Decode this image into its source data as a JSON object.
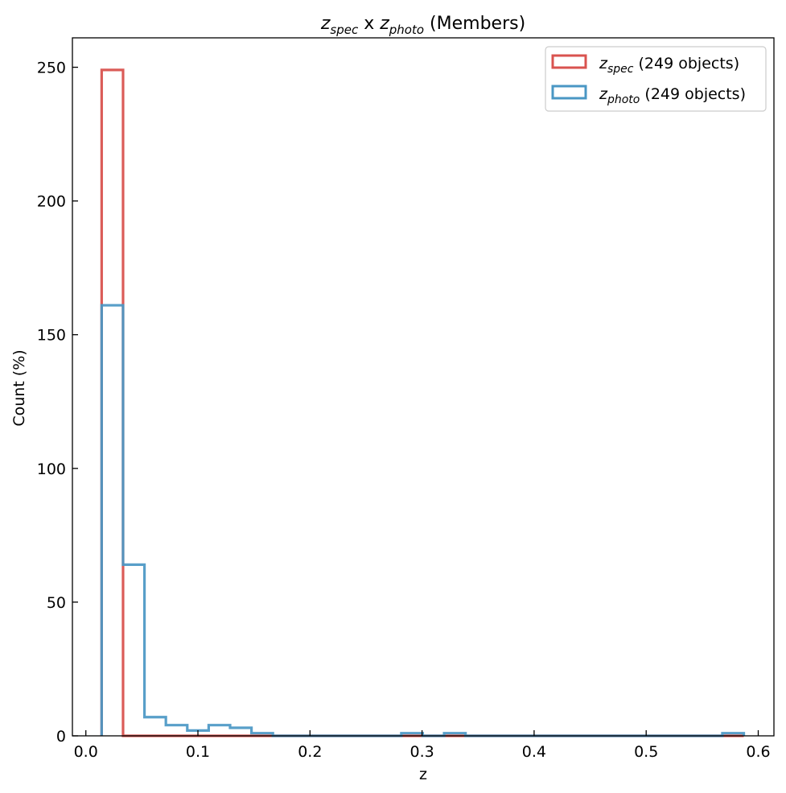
{
  "chart_data": {
    "type": "histogram",
    "title": {
      "spec_symbol": "z",
      "spec_sub": "spec",
      "joiner": " x ",
      "photo_symbol": "z",
      "photo_sub": "photo",
      "suffix": " (Members)"
    },
    "xlabel": "z",
    "ylabel": "Count (%)",
    "xlim": [
      -0.012,
      0.614
    ],
    "ylim": [
      0,
      261
    ],
    "xticks": [
      0.0,
      0.1,
      0.2,
      0.3,
      0.4,
      0.5,
      0.6
    ],
    "xtick_labels": [
      "0.0",
      "0.1",
      "0.2",
      "0.3",
      "0.4",
      "0.5",
      "0.6"
    ],
    "yticks": [
      0,
      50,
      100,
      150,
      200,
      250
    ],
    "ytick_labels": [
      "0",
      "50",
      "100",
      "150",
      "200",
      "250"
    ],
    "tick_direction": "in",
    "grid": false,
    "legend_position": "top-right",
    "series": [
      {
        "name": "z_spec (249 objects)",
        "legend": {
          "symbol": "z",
          "sub": "spec",
          "rest": " (249 objects)"
        },
        "color": "#d9534f",
        "bin_edges": [
          0.0141,
          0.0332,
          0.0523,
          0.0714,
          0.0905,
          0.1096,
          0.1287,
          0.1478,
          0.1669,
          0.186,
          0.2051,
          0.2242,
          0.2433,
          0.2624,
          0.2815,
          0.3006,
          0.3197,
          0.3388,
          0.3579,
          0.377,
          0.3961,
          0.4152,
          0.4343,
          0.4534,
          0.4725,
          0.4916,
          0.5107,
          0.5298,
          0.5489,
          0.568,
          0.5871
        ],
        "counts": [
          249,
          0,
          0,
          0,
          0,
          0,
          0,
          0,
          0,
          0,
          0,
          0,
          0,
          0,
          0,
          0,
          0,
          0,
          0,
          0,
          0,
          0,
          0,
          0,
          0,
          0,
          0,
          0,
          0,
          0
        ]
      },
      {
        "name": "z_photo (249 objects)",
        "legend": {
          "symbol": "z",
          "sub": "photo",
          "rest": " (249 objects)"
        },
        "color": "#4a97c4",
        "bin_edges": [
          0.0141,
          0.0332,
          0.0523,
          0.0714,
          0.0905,
          0.1096,
          0.1287,
          0.1478,
          0.1669,
          0.186,
          0.2051,
          0.2242,
          0.2433,
          0.2624,
          0.2815,
          0.3006,
          0.3197,
          0.3388,
          0.3579,
          0.377,
          0.3961,
          0.4152,
          0.4343,
          0.4534,
          0.4725,
          0.4916,
          0.5107,
          0.5298,
          0.5489,
          0.568,
          0.5871
        ],
        "counts": [
          161,
          64,
          7,
          4,
          2,
          4,
          3,
          1,
          0,
          0,
          0,
          0,
          0,
          0,
          1,
          0,
          1,
          0,
          0,
          0,
          0,
          0,
          0,
          0,
          0,
          0,
          0,
          0,
          0,
          1
        ]
      }
    ]
  }
}
